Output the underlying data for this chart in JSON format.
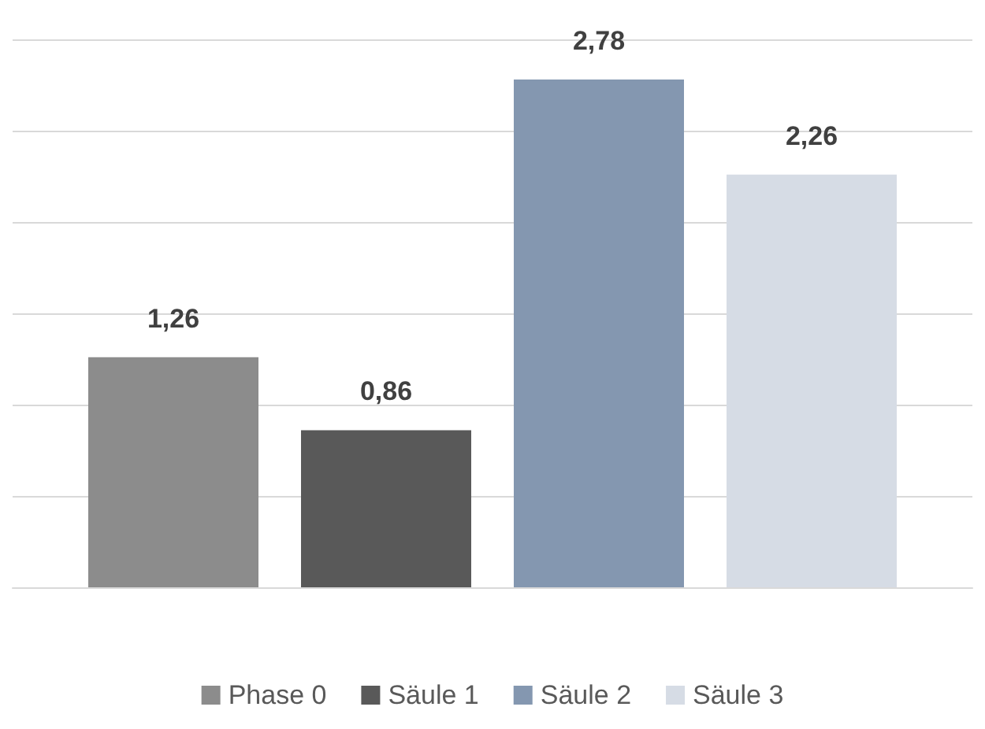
{
  "chart_data": {
    "type": "bar",
    "categories": [
      null
    ],
    "ylim": [
      0,
      3
    ],
    "yticks": [
      0,
      0.5,
      1,
      1.5,
      2,
      2.5,
      3
    ],
    "grid": "y",
    "tick_labels": false,
    "legend": "bottom",
    "series": [
      {
        "name": "Phase 0",
        "color": "#8c8c8c",
        "values": [
          1.26
        ],
        "value_labels": [
          "1,26"
        ]
      },
      {
        "name": "Säule 1",
        "color": "#595959",
        "values": [
          0.86
        ],
        "value_labels": [
          "0,86"
        ]
      },
      {
        "name": "Säule 2",
        "color": "#8497b0",
        "values": [
          2.78
        ],
        "value_labels": [
          "2,78"
        ]
      },
      {
        "name": "Säule 3",
        "color": "#d6dce5",
        "values": [
          2.26
        ],
        "value_labels": [
          "2,26"
        ]
      }
    ]
  }
}
